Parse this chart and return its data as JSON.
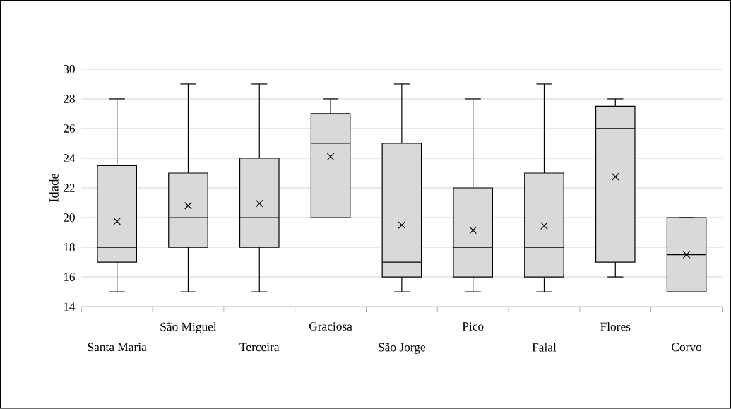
{
  "chart_data": {
    "type": "box",
    "ylabel": "Idade",
    "categories": [
      "Santa Maria",
      "São Miguel",
      "Terceira",
      "Graciosa",
      "São Jorge",
      "Pico",
      "Faial",
      "Flores",
      "Corvo"
    ],
    "boxes": [
      {
        "low": 15,
        "q1": 17,
        "median": 18,
        "q3": 23.5,
        "high": 28,
        "mean": 19.75
      },
      {
        "low": 15,
        "q1": 18,
        "median": 20,
        "q3": 23,
        "high": 29,
        "mean": 20.8
      },
      {
        "low": 15,
        "q1": 18,
        "median": 20,
        "q3": 24,
        "high": 29,
        "mean": 20.95
      },
      {
        "low": 20,
        "q1": 20,
        "median": 25,
        "q3": 27,
        "high": 28,
        "mean": 24.1
      },
      {
        "low": 15,
        "q1": 16,
        "median": 17,
        "q3": 25,
        "high": 29,
        "mean": 19.5
      },
      {
        "low": 15,
        "q1": 16,
        "median": 18,
        "q3": 22,
        "high": 28,
        "mean": 19.15
      },
      {
        "low": 15,
        "q1": 16,
        "median": 18,
        "q3": 23,
        "high": 29,
        "mean": 19.45
      },
      {
        "low": 16,
        "q1": 17,
        "median": 26,
        "q3": 27.5,
        "high": 28,
        "mean": 22.75
      },
      {
        "low": 15,
        "q1": 15,
        "median": 17.5,
        "q3": 20,
        "high": 20,
        "mean": 17.5
      }
    ],
    "color": "#d9d9d9",
    "ylim": [
      14,
      30
    ],
    "yticks": [
      14,
      16,
      18,
      20,
      22,
      24,
      26,
      28,
      30
    ],
    "grid": "y",
    "marker": "cross"
  }
}
